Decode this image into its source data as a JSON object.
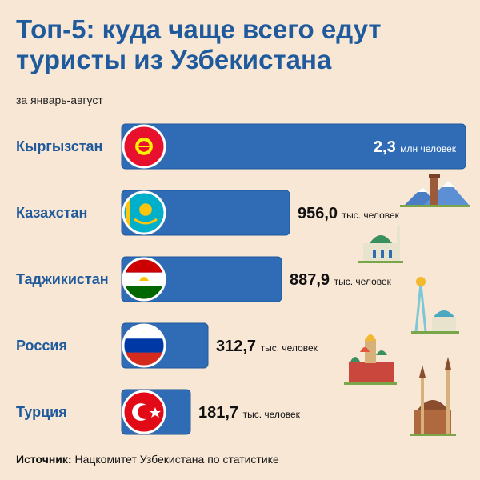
{
  "title_line1": "Топ-5: куда чаще всего едут",
  "title_line2": "туристы из Узбекистана",
  "subtitle": "за январь-август",
  "source": {
    "label": "Источник:",
    "text": "Нацкомитет Узбекистана по статистике"
  },
  "colors": {
    "background": "#f8e7d5",
    "bar": "#2f6cb5",
    "bar_dark": "#1f5a9d",
    "title": "#1f5a9d"
  },
  "chart_data": {
    "type": "bar",
    "orientation": "horizontal",
    "categories": [
      "Кыргызстан",
      "Казахстан",
      "Таджикистан",
      "Россия",
      "Турция"
    ],
    "values": [
      2300,
      956.0,
      887.9,
      312.7,
      181.7
    ],
    "value_unit": "тыс. человек",
    "labels": [
      {
        "value": "2,3",
        "unit": "млн человек"
      },
      {
        "value": "956,0",
        "unit": "тыс. человек"
      },
      {
        "value": "887,9",
        "unit": "тыс. человек"
      },
      {
        "value": "312,7",
        "unit": "тыс. человек"
      },
      {
        "value": "181,7",
        "unit": "тыс. человек"
      }
    ],
    "flags": [
      "kyrgyzstan-flag",
      "kazakhstan-flag",
      "tajikistan-flag",
      "russia-flag",
      "turkey-flag"
    ],
    "title": "Топ-5: куда чаще всего едут туристы из Узбекистана"
  }
}
